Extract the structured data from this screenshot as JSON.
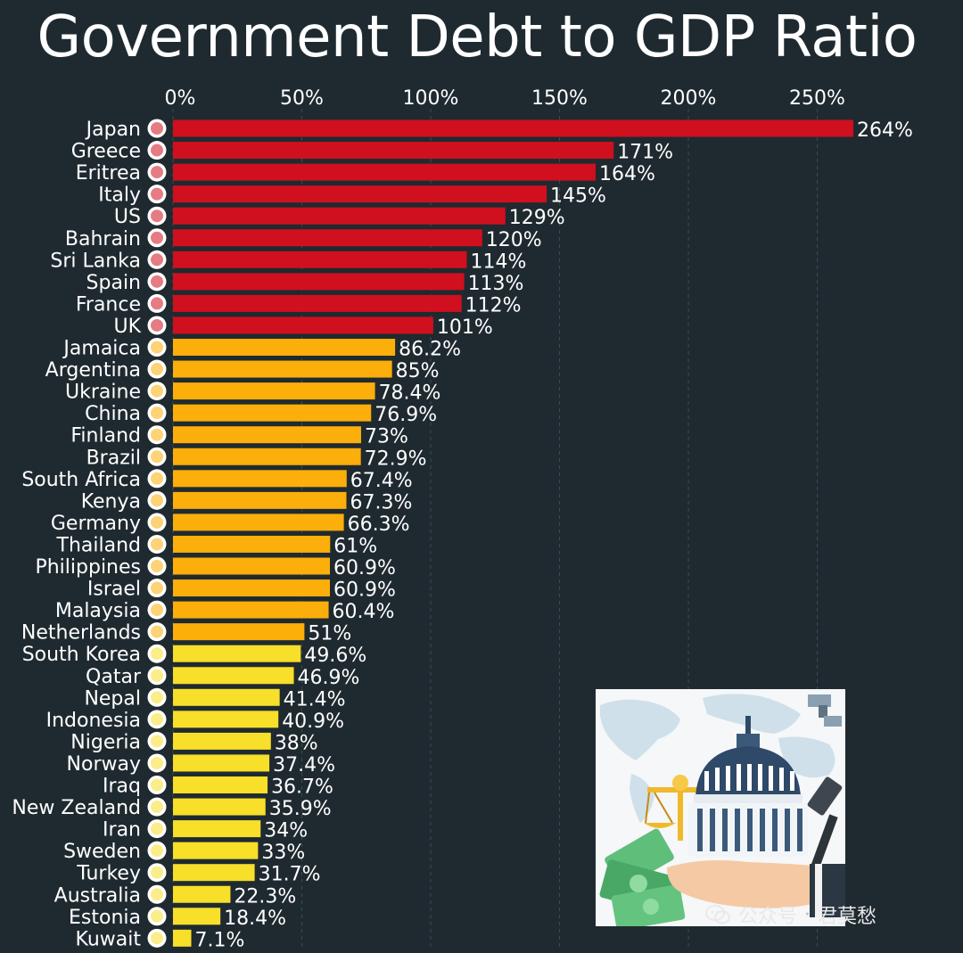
{
  "chart_data": {
    "type": "bar",
    "orientation": "horizontal",
    "title": "Government Debt to GDP Ratio",
    "xlabel": "",
    "ylabel": "",
    "xlim": [
      0,
      264
    ],
    "ticks": [
      0,
      50,
      100,
      150,
      200,
      250
    ],
    "tick_labels": [
      "0%",
      "50%",
      "100%",
      "150%",
      "200%",
      "250%"
    ],
    "grid": true,
    "categories": [
      "Japan",
      "Greece",
      "Eritrea",
      "Italy",
      "US",
      "Bahrain",
      "Sri Lanka",
      "Spain",
      "France",
      "UK",
      "Jamaica",
      "Argentina",
      "Ukraine",
      "China",
      "Finland",
      "Brazil",
      "South Africa",
      "Kenya",
      "Germany",
      "Thailand",
      "Philippines",
      "Israel",
      "Malaysia",
      "Netherlands",
      "South Korea",
      "Qatar",
      "Nepal",
      "Indonesia",
      "Nigeria",
      "Norway",
      "Iraq",
      "New Zealand",
      "Iran",
      "Sweden",
      "Turkey",
      "Australia",
      "Estonia",
      "Kuwait"
    ],
    "values": [
      264,
      171,
      164,
      145,
      129,
      120,
      114,
      113,
      112,
      101,
      86.2,
      85,
      78.4,
      76.9,
      73,
      72.9,
      67.4,
      67.3,
      66.3,
      61,
      60.9,
      60.9,
      60.4,
      51,
      49.6,
      46.9,
      41.4,
      40.9,
      38,
      37.4,
      36.7,
      35.9,
      34,
      33,
      31.7,
      22.3,
      18.4,
      7.1
    ],
    "value_labels": [
      "264%",
      "171%",
      "164%",
      "145%",
      "129%",
      "120%",
      "114%",
      "113%",
      "112%",
      "101%",
      "86.2%",
      "85%",
      "78.4%",
      "76.9%",
      "73%",
      "72.9%",
      "67.4%",
      "67.3%",
      "66.3%",
      "61%",
      "60.9%",
      "60.9%",
      "60.4%",
      "51%",
      "49.6%",
      "46.9%",
      "41.4%",
      "40.9%",
      "38%",
      "37.4%",
      "36.7%",
      "35.9%",
      "34%",
      "33%",
      "31.7%",
      "22.3%",
      "18.4%",
      "7.1%"
    ],
    "color_bands": [
      {
        "min": 100,
        "color": "#d0101e"
      },
      {
        "min": 50,
        "color": "#fcae0a"
      },
      {
        "min": 0,
        "color": "#f7df2a"
      }
    ]
  },
  "flag_icons": [
    "japan-flag-icon",
    "greece-flag-icon",
    "eritrea-flag-icon",
    "italy-flag-icon",
    "us-flag-icon",
    "bahrain-flag-icon",
    "sri-lanka-flag-icon",
    "spain-flag-icon",
    "france-flag-icon",
    "uk-flag-icon",
    "jamaica-flag-icon",
    "argentina-flag-icon",
    "ukraine-flag-icon",
    "china-flag-icon",
    "finland-flag-icon",
    "brazil-flag-icon",
    "south-africa-flag-icon",
    "kenya-flag-icon",
    "germany-flag-icon",
    "thailand-flag-icon",
    "philippines-flag-icon",
    "israel-flag-icon",
    "malaysia-flag-icon",
    "netherlands-flag-icon",
    "south-korea-flag-icon",
    "qatar-flag-icon",
    "nepal-flag-icon",
    "indonesia-flag-icon",
    "nigeria-flag-icon",
    "norway-flag-icon",
    "iraq-flag-icon",
    "new-zealand-flag-icon",
    "iran-flag-icon",
    "sweden-flag-icon",
    "turkey-flag-icon",
    "australia-flag-icon",
    "estonia-flag-icon",
    "kuwait-flag-icon"
  ],
  "watermark": {
    "icon": "wechat-icon",
    "text1": "公众号",
    "sep": "·",
    "text2": "君莫愁"
  },
  "illustration": {
    "icon": "capitol-money-illustration"
  }
}
